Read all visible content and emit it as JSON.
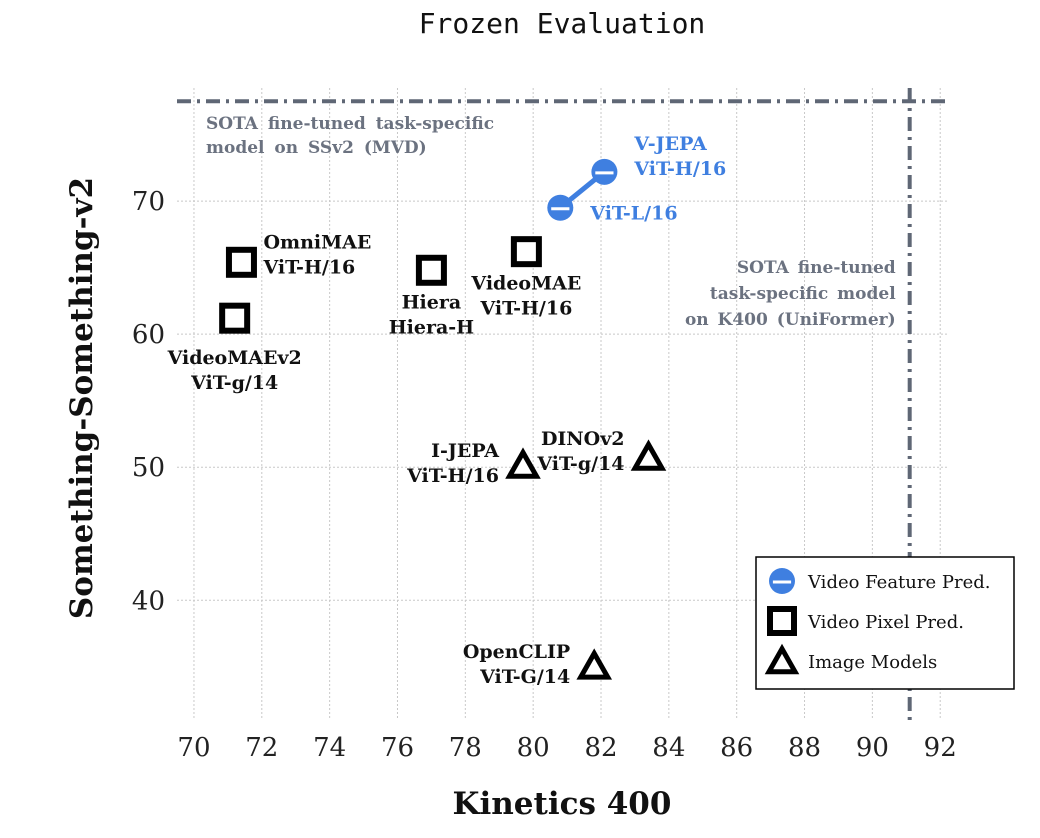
{
  "chart_data": {
    "type": "scatter",
    "title": "Frozen Evaluation",
    "xlabel": "Kinetics 400",
    "ylabel": "Something-Something-v2",
    "xlim": [
      69.5,
      92.2
    ],
    "ylim": [
      31,
      78.5
    ],
    "xticks": [
      70,
      72,
      74,
      76,
      78,
      80,
      82,
      84,
      86,
      88,
      90,
      92
    ],
    "yticks": [
      40,
      50,
      60,
      70
    ],
    "grid": true,
    "legend_position": "bottom-right",
    "colors": {
      "video_feature": "#3f7fe0",
      "black": "#000000",
      "ref_line": "#5f6775",
      "grid": "#c8c8c8"
    },
    "legend": [
      {
        "label": "Video Feature Pred.",
        "marker": "half-circle",
        "color": "#3f7fe0"
      },
      {
        "label": "Video Pixel Pred.",
        "marker": "square",
        "color": "#000000"
      },
      {
        "label": "Image Models",
        "marker": "triangle",
        "color": "#000000"
      }
    ],
    "series": [
      {
        "marker": "half-circle",
        "color": "#3f7fe0",
        "connected": true,
        "points": [
          {
            "x": 80.8,
            "y": 69.5,
            "label": [
              "ViT-L/16"
            ]
          },
          {
            "x": 82.1,
            "y": 72.2,
            "label": [
              "V-JEPA",
              "ViT-H/16"
            ]
          }
        ]
      },
      {
        "marker": "square",
        "color": "#000000",
        "connected": false,
        "points": [
          {
            "x": 71.4,
            "y": 65.4,
            "label": [
              "OmniMAE",
              "ViT-H/16"
            ]
          },
          {
            "x": 71.2,
            "y": 61.2,
            "label": [
              "VideoMAEv2",
              "ViT-g/14"
            ]
          },
          {
            "x": 77.0,
            "y": 64.8,
            "label": [
              "Hiera",
              "Hiera-H"
            ]
          },
          {
            "x": 79.8,
            "y": 66.2,
            "label": [
              "VideoMAE",
              "ViT-H/16"
            ]
          }
        ]
      },
      {
        "marker": "triangle",
        "color": "#000000",
        "connected": false,
        "points": [
          {
            "x": 79.7,
            "y": 50.0,
            "label": [
              "I-JEPA",
              "ViT-H/16"
            ]
          },
          {
            "x": 83.4,
            "y": 50.6,
            "label": [
              "DINOv2",
              "ViT-g/14"
            ]
          },
          {
            "x": 81.8,
            "y": 34.9,
            "label": [
              "OpenCLIP",
              "ViT-G/14"
            ]
          }
        ]
      }
    ],
    "reference_lines": [
      {
        "orientation": "horizontal",
        "value": 77.5,
        "label": [
          "SOTA fine-tuned task-specific",
          "model on SSv2 (MVD)"
        ]
      },
      {
        "orientation": "vertical",
        "value": 91.1,
        "label": [
          "SOTA fine-tuned",
          "task-specific model",
          "on K400 (UniFormer)"
        ]
      }
    ]
  }
}
